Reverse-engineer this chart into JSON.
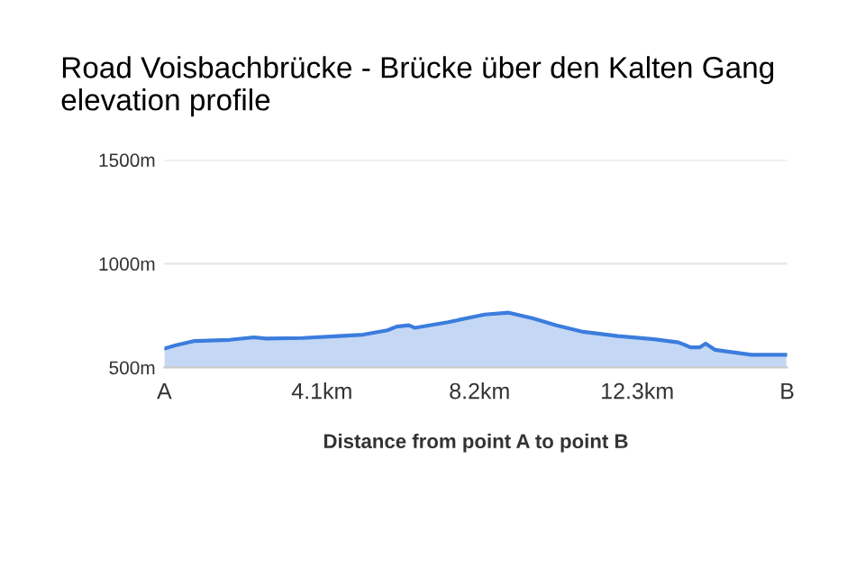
{
  "chart_data": {
    "type": "area",
    "title": "Road Voisbachbrücke - Brücke über den Kalten Gang elevation profile",
    "xlabel": "Distance from point A to point B",
    "x": [
      0,
      0.28,
      0.76,
      1.7,
      2.33,
      2.65,
      3.6,
      4.54,
      5.17,
      5.8,
      6.04,
      6.36,
      6.51,
      7.38,
      8.33,
      8.96,
      9.59,
      10.2,
      10.85,
      11.8,
      12.74,
      13.37,
      13.69,
      13.93,
      14.08,
      14.32,
      15.27,
      16.18
    ],
    "series": [
      {
        "color": "#3b7ddd",
        "values": [
          591,
          606,
          627,
          633,
          645,
          639,
          642,
          651,
          658,
          679,
          697,
          703,
          691,
          718,
          755,
          764,
          736,
          703,
          673,
          651,
          636,
          621,
          597,
          597,
          615,
          585,
          561,
          561
        ]
      }
    ],
    "xlim": [
      0,
      16.2
    ],
    "xticks": [
      {
        "value": 0,
        "label": "A"
      },
      {
        "value": 4.1,
        "label": "4.1km"
      },
      {
        "value": 8.2,
        "label": "8.2km"
      },
      {
        "value": 12.3,
        "label": "12.3km"
      },
      {
        "value": 16.2,
        "label": "B"
      }
    ],
    "ylim": [
      500,
      1500
    ],
    "yticks": [
      {
        "value": 500,
        "label": "500m"
      },
      {
        "value": 1000,
        "label": "1000m"
      },
      {
        "value": 1500,
        "label": "1500m"
      }
    ],
    "grid": "y"
  }
}
